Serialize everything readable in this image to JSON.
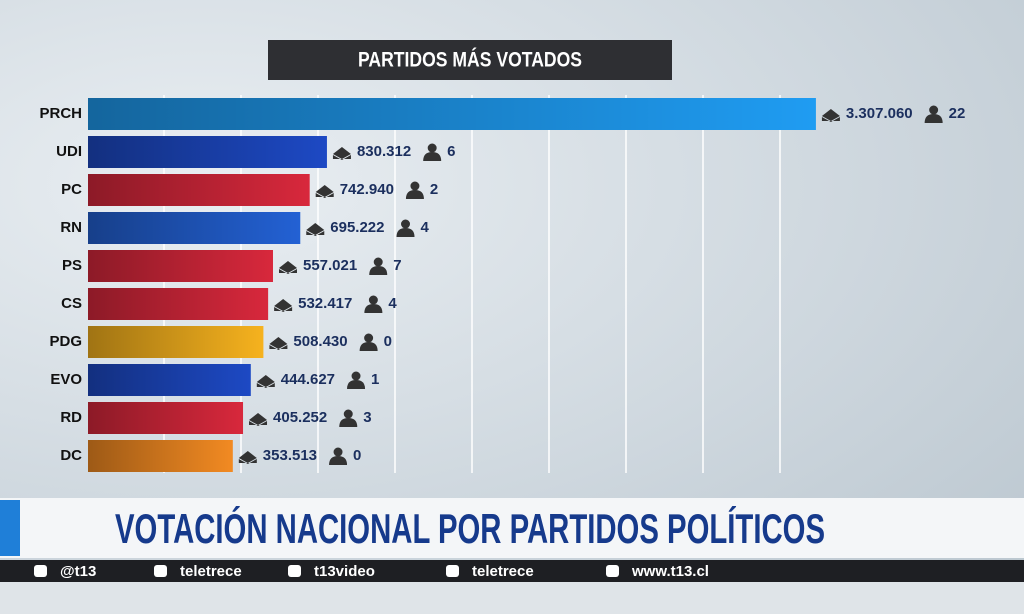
{
  "chart_data": {
    "type": "bar",
    "orientation": "horizontal",
    "title": "PARTIDOS MÁS VOTADOS",
    "categories": [
      "PRCH",
      "UDI",
      "PC",
      "RN",
      "PS",
      "CS",
      "PDG",
      "EVO",
      "RD",
      "DC"
    ],
    "values": [
      3307060,
      830312,
      742940,
      695222,
      557021,
      532417,
      508430,
      444627,
      405252,
      353513
    ],
    "value_labels": [
      "3.307.060",
      "830.312",
      "742.940",
      "695.222",
      "557.021",
      "532.417",
      "508.430",
      "444.627",
      "405.252",
      "353.513"
    ],
    "seats": [
      22,
      6,
      2,
      4,
      7,
      4,
      0,
      1,
      3,
      0
    ],
    "colors": [
      "#1f9cf2",
      "#1d49c4",
      "#d8283c",
      "#2361d4",
      "#d8283c",
      "#d8283c",
      "#f6b21e",
      "#1d49c4",
      "#d8283c",
      "#f28a22"
    ],
    "xlim": [
      -380000,
      3500000
    ]
  },
  "banner": {
    "title": "VOTACIÓN NACIONAL POR PARTIDOS POLÍTICOS"
  },
  "social": {
    "items": [
      "@t13",
      "teletrece",
      "t13video",
      "teletrece",
      "www.t13.cl"
    ]
  }
}
